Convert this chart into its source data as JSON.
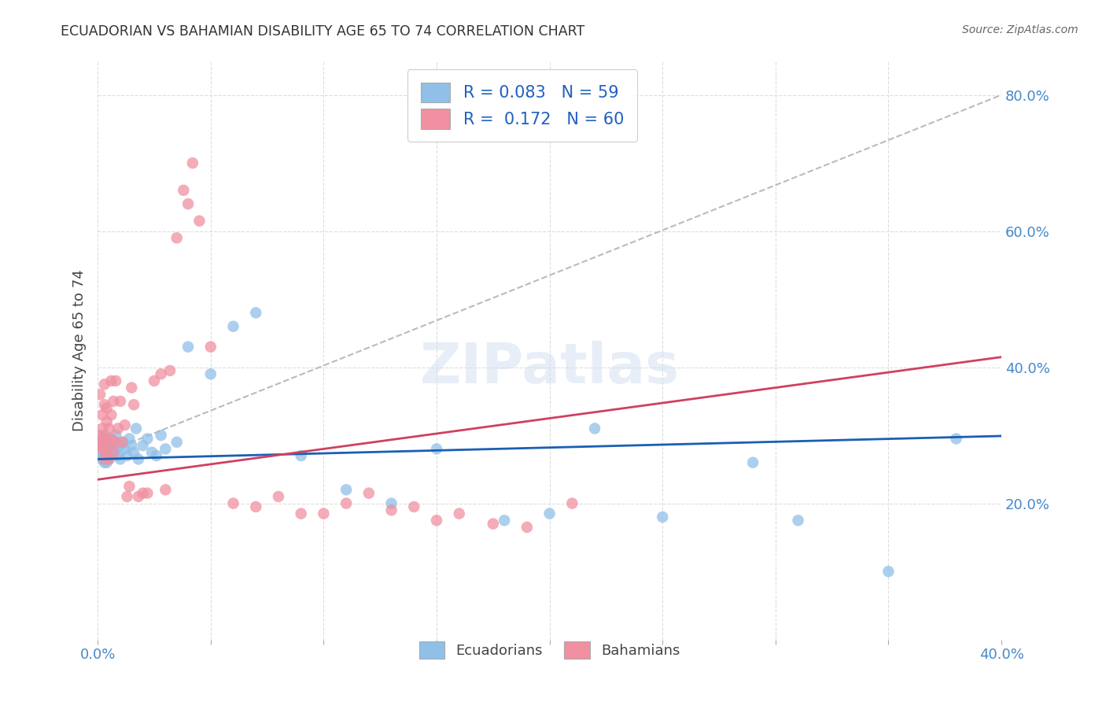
{
  "title": "ECUADORIAN VS BAHAMIAN DISABILITY AGE 65 TO 74 CORRELATION CHART",
  "source": "Source: ZipAtlas.com",
  "ylabel": "Disability Age 65 to 74",
  "xmin": 0.0,
  "xmax": 0.4,
  "ymin": 0.0,
  "ymax": 0.85,
  "xticks": [
    0.0,
    0.05,
    0.1,
    0.15,
    0.2,
    0.25,
    0.3,
    0.35,
    0.4
  ],
  "yticks": [
    0.0,
    0.2,
    0.4,
    0.6,
    0.8
  ],
  "ecuadorians_color": "#90c0e8",
  "bahamians_color": "#f090a0",
  "regression_blue_color": "#1a5fb4",
  "regression_pink_color": "#d04060",
  "background_color": "#ffffff",
  "grid_color": "#dddddd",
  "title_color": "#333333",
  "tick_color": "#4488cc",
  "R_ecu": 0.083,
  "N_ecu": 59,
  "R_bah": 0.172,
  "N_bah": 60,
  "ecuadorians_x": [
    0.001,
    0.001,
    0.001,
    0.002,
    0.002,
    0.002,
    0.002,
    0.003,
    0.003,
    0.003,
    0.003,
    0.003,
    0.004,
    0.004,
    0.004,
    0.004,
    0.005,
    0.005,
    0.005,
    0.006,
    0.006,
    0.007,
    0.007,
    0.008,
    0.008,
    0.009,
    0.01,
    0.01,
    0.011,
    0.012,
    0.013,
    0.014,
    0.015,
    0.016,
    0.017,
    0.018,
    0.02,
    0.022,
    0.024,
    0.026,
    0.028,
    0.03,
    0.035,
    0.04,
    0.05,
    0.06,
    0.07,
    0.09,
    0.11,
    0.13,
    0.15,
    0.18,
    0.2,
    0.22,
    0.25,
    0.29,
    0.31,
    0.35,
    0.38
  ],
  "ecuadorians_y": [
    0.28,
    0.27,
    0.29,
    0.265,
    0.285,
    0.295,
    0.275,
    0.26,
    0.28,
    0.3,
    0.27,
    0.29,
    0.275,
    0.285,
    0.26,
    0.295,
    0.27,
    0.28,
    0.265,
    0.285,
    0.295,
    0.275,
    0.29,
    0.28,
    0.3,
    0.27,
    0.285,
    0.265,
    0.29,
    0.28,
    0.27,
    0.295,
    0.285,
    0.275,
    0.31,
    0.265,
    0.285,
    0.295,
    0.275,
    0.27,
    0.3,
    0.28,
    0.29,
    0.43,
    0.39,
    0.46,
    0.48,
    0.27,
    0.22,
    0.2,
    0.28,
    0.175,
    0.185,
    0.31,
    0.18,
    0.26,
    0.175,
    0.1,
    0.295
  ],
  "bahamians_x": [
    0.001,
    0.001,
    0.001,
    0.002,
    0.002,
    0.002,
    0.002,
    0.003,
    0.003,
    0.003,
    0.003,
    0.004,
    0.004,
    0.004,
    0.004,
    0.005,
    0.005,
    0.005,
    0.006,
    0.006,
    0.006,
    0.007,
    0.007,
    0.008,
    0.008,
    0.009,
    0.01,
    0.011,
    0.012,
    0.013,
    0.014,
    0.015,
    0.016,
    0.018,
    0.02,
    0.022,
    0.025,
    0.028,
    0.03,
    0.032,
    0.035,
    0.038,
    0.04,
    0.042,
    0.045,
    0.05,
    0.06,
    0.07,
    0.08,
    0.09,
    0.1,
    0.11,
    0.12,
    0.13,
    0.14,
    0.15,
    0.16,
    0.175,
    0.19,
    0.21
  ],
  "bahamians_y": [
    0.3,
    0.285,
    0.36,
    0.28,
    0.295,
    0.31,
    0.33,
    0.265,
    0.345,
    0.285,
    0.375,
    0.295,
    0.32,
    0.27,
    0.34,
    0.285,
    0.31,
    0.265,
    0.295,
    0.33,
    0.38,
    0.275,
    0.35,
    0.29,
    0.38,
    0.31,
    0.35,
    0.29,
    0.315,
    0.21,
    0.225,
    0.37,
    0.345,
    0.21,
    0.215,
    0.215,
    0.38,
    0.39,
    0.22,
    0.395,
    0.59,
    0.66,
    0.64,
    0.7,
    0.615,
    0.43,
    0.2,
    0.195,
    0.21,
    0.185,
    0.185,
    0.2,
    0.215,
    0.19,
    0.195,
    0.175,
    0.185,
    0.17,
    0.165,
    0.2
  ]
}
